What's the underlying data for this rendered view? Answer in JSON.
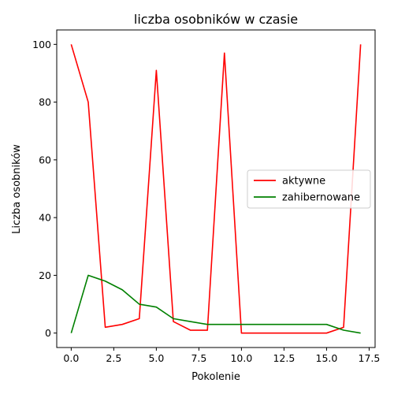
{
  "chart_data": {
    "type": "line",
    "title": "liczba osobników w czasie",
    "xlabel": "Pokolenie",
    "ylabel": "Liczba osobników",
    "xlim": [
      -0.85,
      17.85
    ],
    "ylim": [
      -5,
      105
    ],
    "xticks": [
      0.0,
      2.5,
      5.0,
      7.5,
      10.0,
      12.5,
      15.0,
      17.5
    ],
    "xtick_labels": [
      "0.0",
      "2.5",
      "5.0",
      "7.5",
      "10.0",
      "12.5",
      "15.0",
      "17.5"
    ],
    "yticks": [
      0,
      20,
      40,
      60,
      80,
      100
    ],
    "ytick_labels": [
      "0",
      "20",
      "40",
      "60",
      "80",
      "100"
    ],
    "x": [
      0,
      1,
      2,
      3,
      4,
      5,
      6,
      7,
      8,
      9,
      10,
      11,
      12,
      13,
      14,
      15,
      16,
      17
    ],
    "series": [
      {
        "name": "aktywne",
        "color": "#ff0000",
        "values": [
          100,
          80,
          2,
          3,
          5,
          91,
          4,
          1,
          1,
          97,
          0,
          0,
          0,
          0,
          0,
          0,
          2,
          100
        ]
      },
      {
        "name": "zahibernowane",
        "color": "#008000",
        "values": [
          0,
          20,
          18,
          15,
          10,
          9,
          5,
          4,
          3,
          3,
          3,
          3,
          3,
          3,
          3,
          3,
          1,
          0
        ]
      }
    ],
    "legend_position": "center-right",
    "grid": false
  }
}
